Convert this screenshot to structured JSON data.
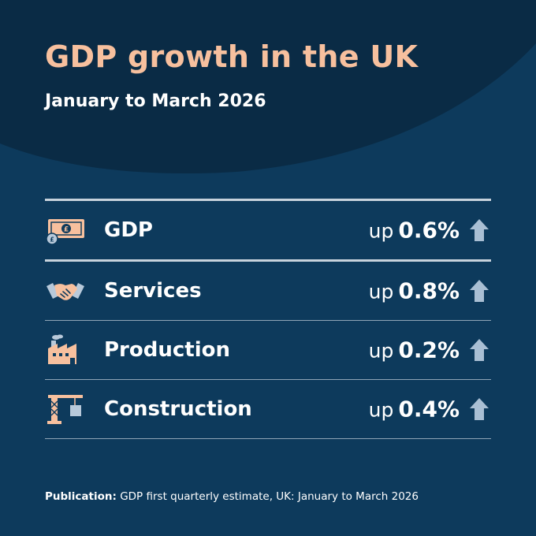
{
  "header": {
    "title": "GDP growth in the UK",
    "subtitle": "January to March 2026"
  },
  "rows": [
    {
      "icon": "banknote-icon",
      "label": "GDP",
      "prefix": "up",
      "value": "0.6%",
      "direction": "up"
    },
    {
      "icon": "handshake-icon",
      "label": "Services",
      "prefix": "up",
      "value": "0.8%",
      "direction": "up"
    },
    {
      "icon": "factory-icon",
      "label": "Production",
      "prefix": "up",
      "value": "0.2%",
      "direction": "up"
    },
    {
      "icon": "crane-icon",
      "label": "Construction",
      "prefix": "up",
      "value": "0.4%",
      "direction": "up"
    }
  ],
  "footer": {
    "label": "Publication:",
    "text": "GDP first quarterly estimate, UK: January to March 2026"
  },
  "colors": {
    "background": "#0d3a5c",
    "header_arc": "#0a2b45",
    "title": "#f7c09e",
    "icon_accent": "#f7c09e",
    "icon_secondary": "#b8c9da",
    "arrow": "#a9bfd4"
  }
}
